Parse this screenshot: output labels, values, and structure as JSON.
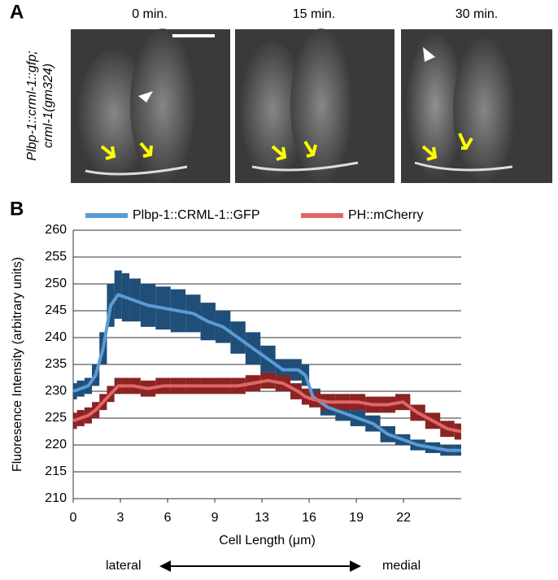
{
  "panel_a": {
    "label": "A",
    "time_labels": [
      "0 min.",
      "15 min.",
      "30 min."
    ],
    "side_label_lines": [
      "Plbp-1::crml-1::gfp;",
      "crml-1(gm324)"
    ]
  },
  "chart_data": {
    "type": "line",
    "panel_label": "B",
    "x_label": "Cell Length (μm)",
    "y_label": "Fluoresence Intensity (arbitrary units)",
    "direction_labels": [
      "lateral",
      "medial"
    ],
    "x": [
      0,
      0.5,
      1,
      1.5,
      2,
      2.5,
      3,
      3.5,
      4,
      5,
      6,
      7,
      8,
      9,
      10,
      11,
      12,
      13,
      14,
      15,
      15.5,
      16,
      17,
      18,
      19,
      20,
      21,
      22,
      23,
      24,
      25,
      25.9
    ],
    "series": [
      {
        "name": "Plbp-1::CRML-1::GFP",
        "color": "#5b9bd5",
        "band_color": "#1f4e79",
        "values": [
          230,
          230.5,
          231,
          233,
          238,
          246,
          248,
          247.5,
          247,
          246,
          245.5,
          245,
          244.5,
          243,
          242,
          240,
          238,
          236,
          234,
          234,
          233,
          229,
          227,
          226,
          225,
          224,
          222,
          221,
          220,
          219.5,
          219,
          219
        ],
        "error": [
          1.5,
          1.5,
          1.5,
          2,
          3,
          4,
          4.5,
          4.5,
          4,
          4,
          4,
          4,
          3.5,
          3.5,
          3,
          3,
          3,
          2.5,
          2,
          2,
          2,
          1.5,
          1.5,
          1.5,
          1.5,
          1.5,
          1.5,
          1,
          1,
          1,
          1,
          1
        ]
      },
      {
        "name": "PH::mCherry",
        "color": "#e06666",
        "band_color": "#8b2323",
        "values": [
          224.5,
          225,
          225.5,
          226.5,
          228,
          229.5,
          231,
          231,
          231,
          230.5,
          231,
          231,
          231,
          231,
          231,
          231,
          231.5,
          232,
          231.5,
          230,
          229,
          228.5,
          228,
          228,
          228,
          227.5,
          227.5,
          228,
          226,
          224.5,
          223,
          222.5
        ],
        "error": [
          1.5,
          1.5,
          1.5,
          1.5,
          1.5,
          1.5,
          1.5,
          1.5,
          1.5,
          1.5,
          1.5,
          1.5,
          1.5,
          1.5,
          1.5,
          1.5,
          1.5,
          1.5,
          1.5,
          1.5,
          1.5,
          1.5,
          1.5,
          1.5,
          1.5,
          1.5,
          1.5,
          1.5,
          1.5,
          1.5,
          1.5,
          1.5
        ]
      }
    ],
    "xlim": [
      0,
      25.9
    ],
    "xticks": [
      0,
      {
        "value": 3.15,
        "label": "3"
      },
      {
        "value": 6.3,
        "label": "6"
      },
      {
        "value": 9.45,
        "label": "9"
      },
      {
        "value": 12.6,
        "label": "13"
      },
      {
        "value": 15.75,
        "label": "16"
      },
      {
        "value": 18.9,
        "label": "19"
      },
      {
        "value": 22.05,
        "label": "22"
      }
    ],
    "ylim": [
      210,
      260
    ],
    "yticks": [
      210,
      215,
      220,
      225,
      230,
      235,
      240,
      245,
      250,
      255,
      260
    ],
    "grid": true
  }
}
